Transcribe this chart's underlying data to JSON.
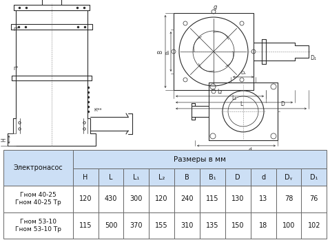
{
  "table_header_col": "Электронасос",
  "table_header_sizes": "Размеры в мм",
  "col_headers": [
    "H",
    "L",
    "L₁",
    "L₂",
    "B",
    "B₁",
    "D",
    "d",
    "Dᵧ",
    "D₁"
  ],
  "rows": [
    {
      "name": "Гном 40-25\nГном 40-25 Тр",
      "values": [
        "120",
        "430",
        "300",
        "120",
        "240",
        "115",
        "130",
        "13",
        "78",
        "76"
      ]
    },
    {
      "name": "Гном 53-10\nГном 53-10 Тр",
      "values": [
        "115",
        "500",
        "370",
        "155",
        "310",
        "135",
        "150",
        "18",
        "100",
        "102"
      ]
    }
  ],
  "header_bg": "#ccdff5",
  "border_color": "#666666",
  "text_color": "#111111"
}
